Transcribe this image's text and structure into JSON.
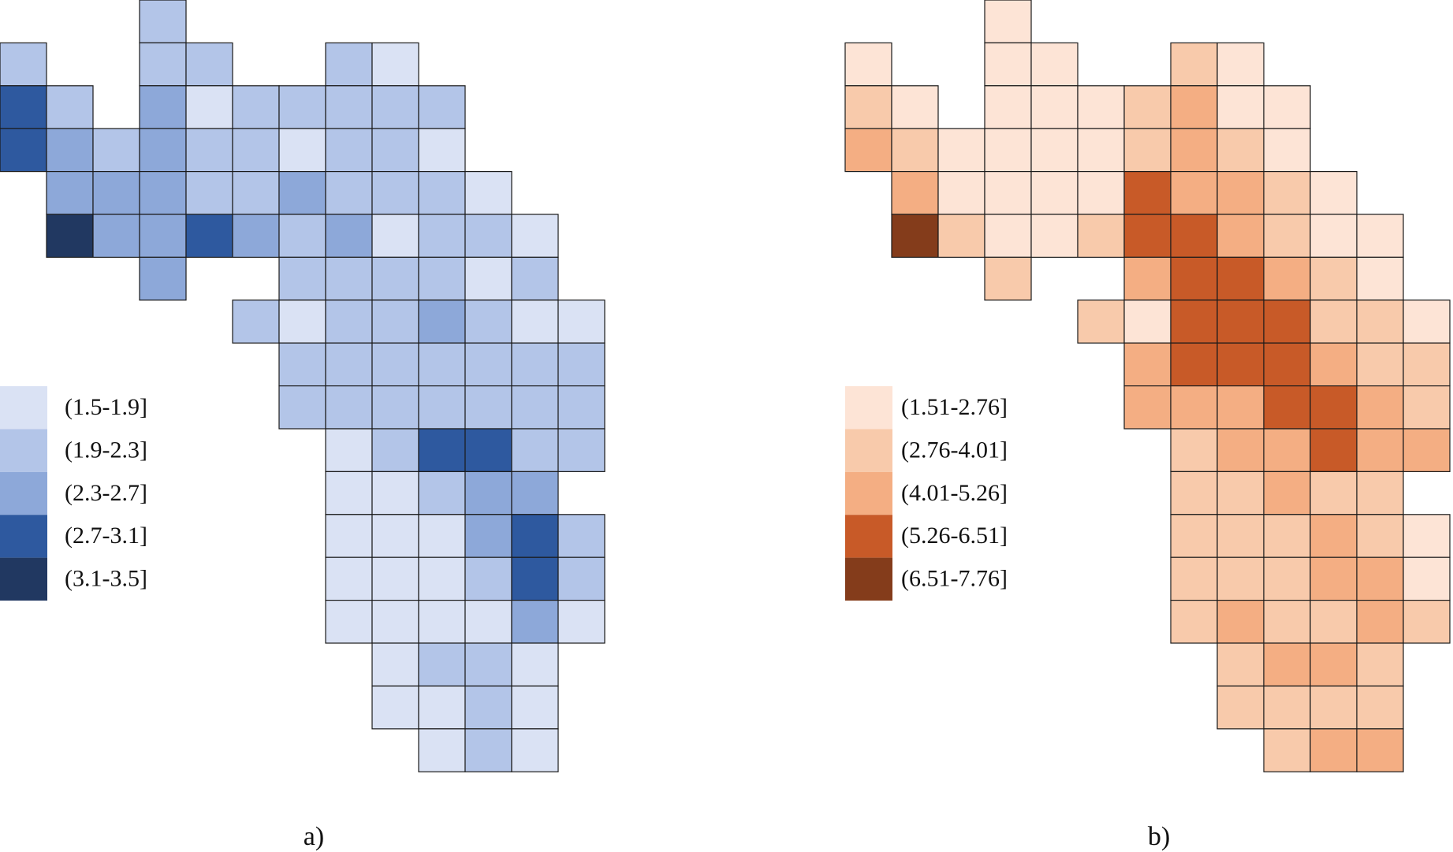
{
  "figure": {
    "panels": [
      {
        "caption": "a)",
        "legend": [
          {
            "label": "(1.5-1.9]",
            "color": "#dae2f4"
          },
          {
            "label": "(1.9-2.3]",
            "color": "#b3c5e8"
          },
          {
            "label": "(2.3-2.7]",
            "color": "#8da8d9"
          },
          {
            "label": "(2.7-3.1]",
            "color": "#2e599f"
          },
          {
            "label": "(3.1-3.5]",
            "color": "#213861"
          }
        ],
        "rows": [
          {
            "start": 3,
            "classes": [
              1
            ]
          },
          {
            "start": 0,
            "classes": [
              1,
              null,
              null,
              1,
              1,
              null,
              null,
              1,
              0
            ]
          },
          {
            "start": 0,
            "classes": [
              3,
              1,
              null,
              2,
              0,
              1,
              1,
              1,
              1,
              1
            ]
          },
          {
            "start": 0,
            "classes": [
              3,
              2,
              1,
              2,
              1,
              1,
              0,
              1,
              1,
              0
            ]
          },
          {
            "start": 1,
            "classes": [
              2,
              2,
              2,
              1,
              1,
              2,
              1,
              1,
              1,
              0
            ]
          },
          {
            "start": 1,
            "classes": [
              4,
              2,
              2,
              3,
              2,
              1,
              2,
              0,
              1,
              1,
              0
            ]
          },
          {
            "start": 3,
            "classes": [
              2,
              null,
              null,
              1,
              1,
              1,
              1,
              0,
              1
            ]
          },
          {
            "start": 5,
            "classes": [
              1,
              0,
              1,
              1,
              2,
              1,
              0,
              0
            ]
          },
          {
            "start": 6,
            "classes": [
              1,
              1,
              1,
              1,
              1,
              1,
              1
            ]
          },
          {
            "start": 6,
            "classes": [
              1,
              1,
              1,
              1,
              1,
              1,
              1
            ]
          },
          {
            "start": 7,
            "classes": [
              0,
              1,
              3,
              3,
              1,
              1
            ]
          },
          {
            "start": 7,
            "classes": [
              0,
              0,
              1,
              2,
              2
            ]
          },
          {
            "start": 7,
            "classes": [
              0,
              0,
              0,
              2,
              3,
              1
            ]
          },
          {
            "start": 7,
            "classes": [
              0,
              0,
              0,
              1,
              3,
              1
            ]
          },
          {
            "start": 7,
            "classes": [
              0,
              0,
              0,
              0,
              2,
              0
            ]
          },
          {
            "start": 8,
            "classes": [
              0,
              1,
              1,
              0
            ]
          },
          {
            "start": 8,
            "classes": [
              0,
              0,
              1,
              0
            ]
          },
          {
            "start": 9,
            "classes": [
              0,
              1,
              0
            ]
          }
        ]
      },
      {
        "caption": "b)",
        "legend": [
          {
            "label": "(1.51-2.76]",
            "color": "#fde4d6"
          },
          {
            "label": "(2.76-4.01]",
            "color": "#f8caab"
          },
          {
            "label": "(4.01-5.26]",
            "color": "#f4ae83"
          },
          {
            "label": "(5.26-6.51]",
            "color": "#c85a28"
          },
          {
            "label": "(6.51-7.76]",
            "color": "#843c1b"
          }
        ],
        "rows": [
          {
            "start": 3,
            "classes": [
              0
            ]
          },
          {
            "start": 0,
            "classes": [
              0,
              null,
              null,
              0,
              0,
              null,
              null,
              1,
              0
            ]
          },
          {
            "start": 0,
            "classes": [
              1,
              0,
              null,
              0,
              0,
              0,
              1,
              2,
              0,
              0
            ]
          },
          {
            "start": 0,
            "classes": [
              2,
              1,
              0,
              0,
              0,
              0,
              1,
              2,
              1,
              0
            ]
          },
          {
            "start": 1,
            "classes": [
              2,
              0,
              0,
              0,
              0,
              3,
              2,
              2,
              1,
              0
            ]
          },
          {
            "start": 1,
            "classes": [
              4,
              1,
              0,
              0,
              1,
              3,
              3,
              2,
              1,
              0,
              0
            ]
          },
          {
            "start": 3,
            "classes": [
              1,
              null,
              null,
              2,
              3,
              3,
              2,
              1,
              0
            ]
          },
          {
            "start": 5,
            "classes": [
              1,
              0,
              3,
              3,
              3,
              1,
              1,
              0
            ]
          },
          {
            "start": 6,
            "classes": [
              2,
              3,
              3,
              3,
              2,
              1,
              1
            ]
          },
          {
            "start": 6,
            "classes": [
              2,
              2,
              2,
              3,
              3,
              2,
              1
            ]
          },
          {
            "start": 7,
            "classes": [
              1,
              2,
              2,
              3,
              2,
              2
            ]
          },
          {
            "start": 7,
            "classes": [
              1,
              1,
              2,
              1,
              1
            ]
          },
          {
            "start": 7,
            "classes": [
              1,
              1,
              1,
              2,
              1,
              0
            ]
          },
          {
            "start": 7,
            "classes": [
              1,
              1,
              1,
              2,
              2,
              0
            ]
          },
          {
            "start": 7,
            "classes": [
              1,
              2,
              1,
              1,
              2,
              1
            ]
          },
          {
            "start": 8,
            "classes": [
              1,
              2,
              2,
              1
            ]
          },
          {
            "start": 8,
            "classes": [
              1,
              1,
              1,
              1
            ]
          },
          {
            "start": 9,
            "classes": [
              1,
              2,
              2
            ]
          }
        ]
      }
    ]
  }
}
